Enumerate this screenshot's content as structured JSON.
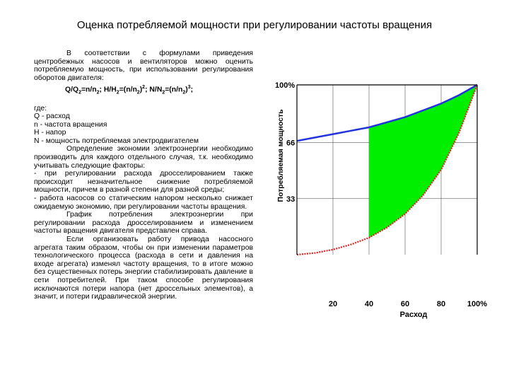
{
  "title": "Оценка потребляемой мощности при регулировании частоты вращения",
  "text": {
    "intro": "В соответствии с формулами приведения центробежных насосов и вентиляторов можно оценить потребляемую мощность, при использовании регулирования оборотов двигателя:",
    "formula": {
      "q1": "Q/Q",
      "s1": "2",
      "q2": "=n/n",
      "s2": "2",
      "h1": "; H/H",
      "s3": "2",
      "h2": "=(n/n",
      "s4": "2",
      "h3": ")",
      "p1": "2",
      "m1": "; N/N",
      "s5": "2",
      "m2": "=(n/n",
      "s6": "2",
      "m3": ")",
      "p2": "3",
      "end": ";"
    },
    "where": "где:",
    "def_q": "Q - расход",
    "def_n": "n - частота вращения",
    "def_h": "H - напор",
    "def_power": "N - мощность потребляемая электродвигателем",
    "economy_intro": "Определение экономии электроэнергии необходимо производить для каждого отдельного случая, т.к. необходимо учитывать следующие факторы:",
    "factor1": "- при регулировании расхода дросселированием также происходит незначительное снижение потребляемой мощности, причем в разной степени для разной среды;",
    "factor2": "- работа насосов со статическим напором несколько снижает ожидаемую экономию, при регулировании частоты вращения.",
    "graph_note": "График потребления электроэнергии при регулировании расхода дросселированием и изменением частоты вращения двигателя представлен справа.",
    "conclusion": "Если организовать работу привода насосного агрегата таким образом, чтобы он при изменении параметров технологического процесса (расхода в сети и давления на входе агрегата) изменял частоту вращения, то в итоге можно без существенных потерь энергии стабилизировать давление в сети потребителей. При таком способе регулирования исключаются потери напора (нет дроссельных элементов), а значит, и потери гидравлической энергии."
  },
  "chart_data": {
    "type": "area",
    "ylabel": "Потребляемая мощность",
    "xlabel": "Расход",
    "x_ticks": [
      "20",
      "40",
      "60",
      "80",
      "100%"
    ],
    "y_ticks": [
      "100%",
      "66",
      "33"
    ],
    "xlim": [
      0,
      100
    ],
    "ylim": [
      0,
      100
    ],
    "grid": true,
    "series": [
      {
        "color": "#2233dd",
        "x": [
          0,
          10,
          20,
          30,
          40,
          50,
          60,
          70,
          80,
          90,
          100
        ],
        "y": [
          67,
          69,
          71,
          73,
          75,
          78,
          81,
          85,
          89,
          94,
          100
        ]
      },
      {
        "color": "#dd2222",
        "x": [
          0,
          10,
          20,
          30,
          40,
          50,
          60,
          70,
          80,
          90,
          100
        ],
        "y": [
          0,
          1,
          3,
          6,
          10,
          16,
          24,
          35,
          50,
          72,
          100
        ]
      }
    ],
    "fill_between": {
      "color": "#00ee00",
      "from_x": 40,
      "to_x": 100
    }
  }
}
